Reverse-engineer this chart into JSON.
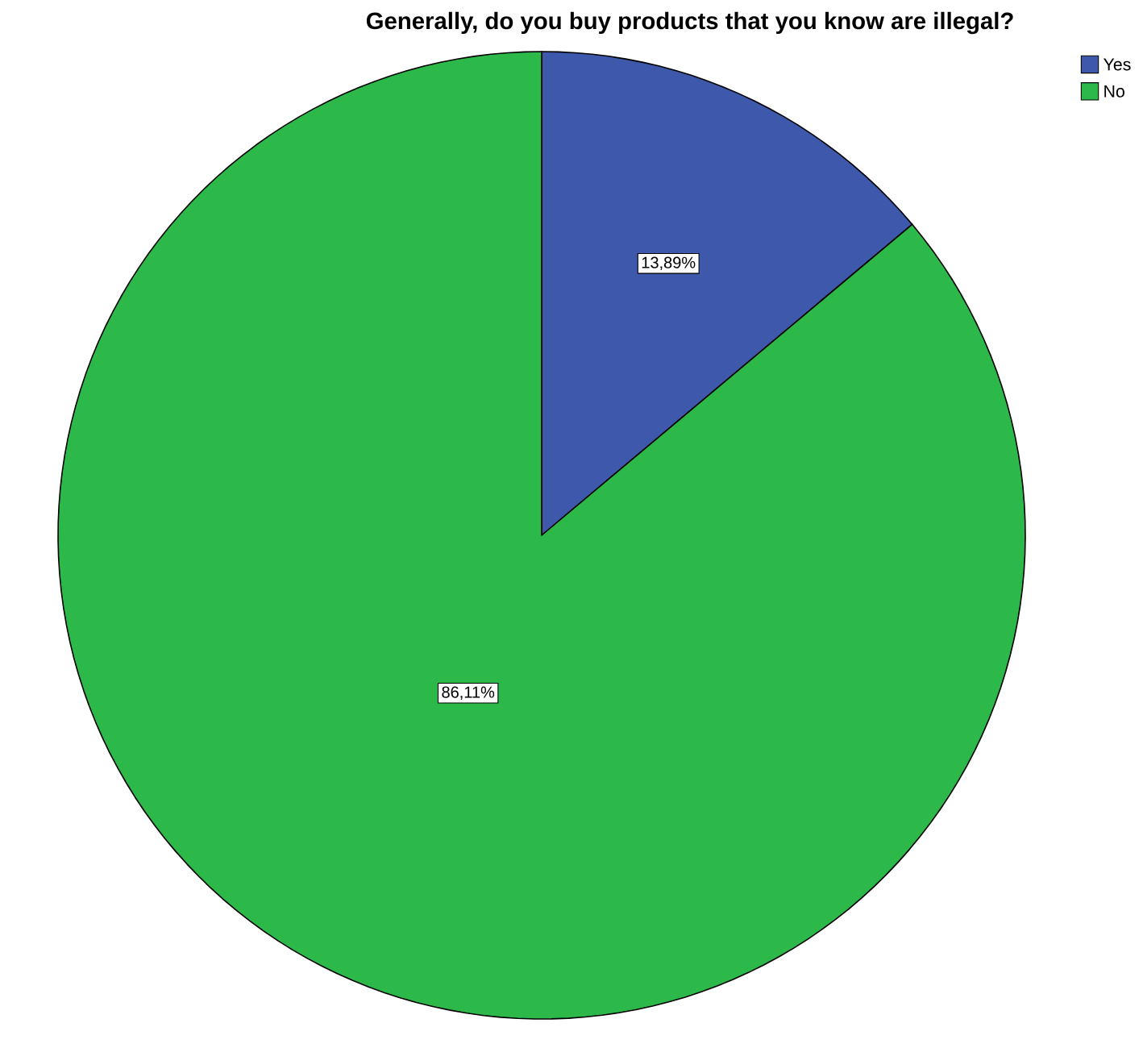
{
  "chart_data": {
    "type": "pie",
    "title": "Generally, do you buy products that you know are illegal?",
    "categories": [
      "Yes",
      "No"
    ],
    "values": [
      13.89,
      86.11
    ],
    "colors": [
      "#3e58ac",
      "#2db84a"
    ],
    "value_labels": [
      "13,89%",
      "86,11%"
    ],
    "legend": "top right"
  }
}
